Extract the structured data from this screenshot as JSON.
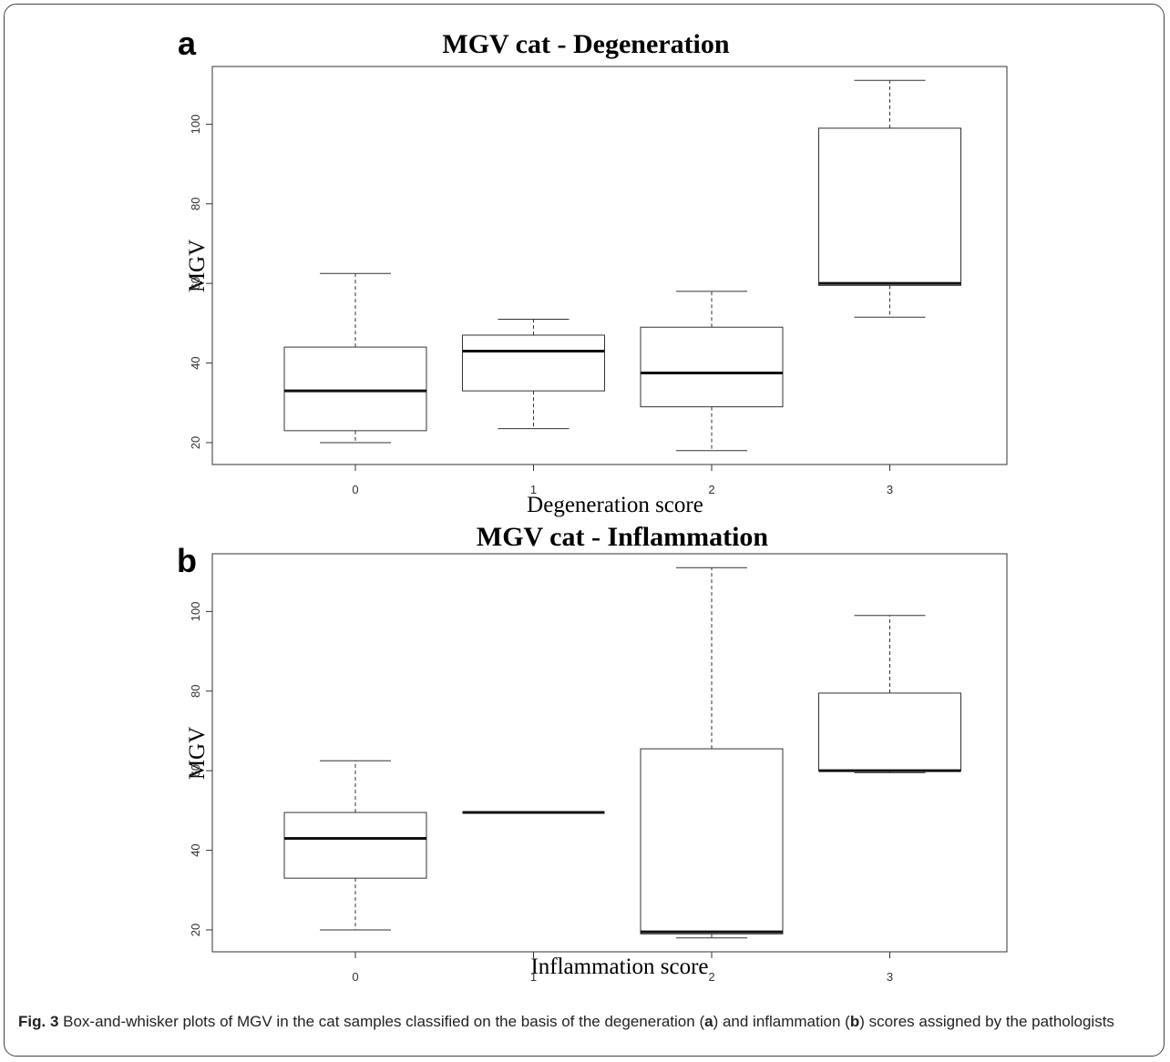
{
  "chart_data": [
    {
      "type": "box",
      "panel": "a",
      "title": "MGV cat - Degeneration",
      "xlabel": "Degeneration score",
      "ylabel": "MGV",
      "categories": [
        "0",
        "1",
        "2",
        "3"
      ],
      "yticks": [
        20,
        40,
        60,
        80,
        100
      ],
      "ylim": [
        14.5,
        114.5
      ],
      "boxes": [
        {
          "min": 20,
          "q1": 23,
          "median": 33,
          "q3": 44,
          "max": 62.5
        },
        {
          "min": 23.5,
          "q1": 33,
          "median": 43,
          "q3": 47,
          "max": 51
        },
        {
          "min": 18,
          "q1": 29,
          "median": 37.5,
          "q3": 49,
          "max": 58
        },
        {
          "min": 51.5,
          "q1": 59.5,
          "median": 60,
          "q3": 99,
          "max": 111
        }
      ]
    },
    {
      "type": "box",
      "panel": "b",
      "title": "MGV cat - Inflammation",
      "xlabel": "Inflammation score",
      "ylabel": "MGV",
      "categories": [
        "0",
        "1",
        "2",
        "3"
      ],
      "yticks": [
        20,
        40,
        60,
        80,
        100
      ],
      "ylim": [
        14.5,
        114.5
      ],
      "boxes": [
        {
          "min": 20,
          "q1": 33,
          "median": 43,
          "q3": 49.5,
          "max": 62.5
        },
        {
          "min": 49.5,
          "q1": 49.5,
          "median": 49.5,
          "q3": 49.5,
          "max": 49.5
        },
        {
          "min": 18,
          "q1": 19,
          "median": 19.5,
          "q3": 65.5,
          "max": 111
        },
        {
          "min": 59.5,
          "q1": 60,
          "median": 60,
          "q3": 79.5,
          "max": 99
        }
      ]
    }
  ],
  "caption": {
    "label": "Fig. 3",
    "text_1": " Box-and-whisker plots of MGV in the cat samples classified on the basis of the degeneration (",
    "ref_a": "a",
    "text_2": ") and inflammation (",
    "ref_b": "b",
    "text_3": ") scores assigned by the pathologists"
  }
}
